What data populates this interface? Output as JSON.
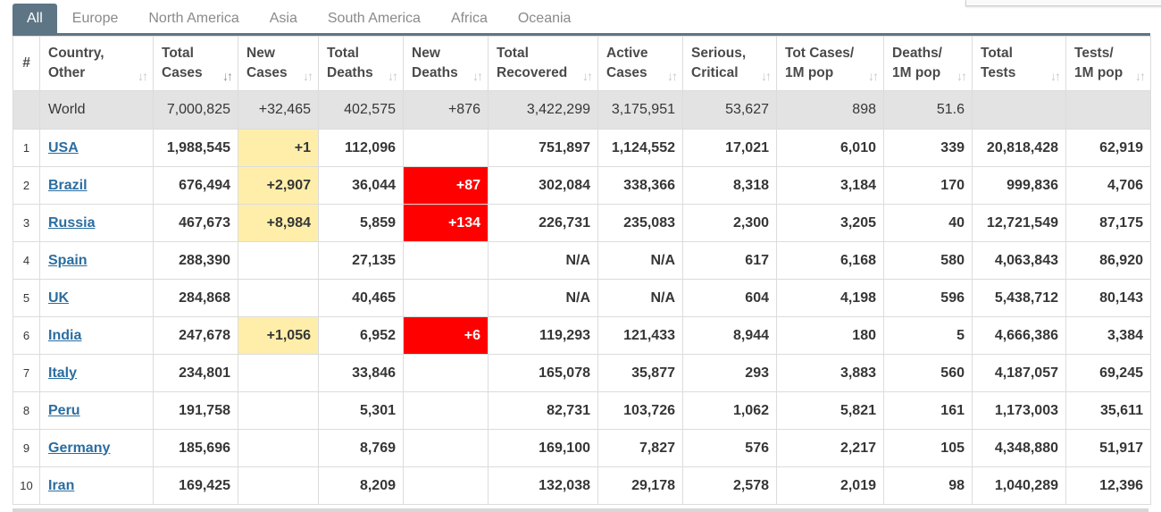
{
  "tabs": [
    "All",
    "Europe",
    "North America",
    "Asia",
    "South America",
    "Africa",
    "Oceania"
  ],
  "active_tab": "All",
  "colors": {
    "accent": "#5e7585",
    "new_cases_bg": "#ffeeaa",
    "new_deaths_bg": "#ff0000",
    "link": "#2b6da0",
    "world_row_bg": "#e3e3e3"
  },
  "columns": [
    {
      "key": "rank",
      "l1": "#",
      "l2": ""
    },
    {
      "key": "country",
      "l1": "Country,",
      "l2": "Other"
    },
    {
      "key": "total_cases",
      "l1": "Total",
      "l2": "Cases"
    },
    {
      "key": "new_cases",
      "l1": "New",
      "l2": "Cases"
    },
    {
      "key": "total_deaths",
      "l1": "Total",
      "l2": "Deaths"
    },
    {
      "key": "new_deaths",
      "l1": "New",
      "l2": "Deaths"
    },
    {
      "key": "total_recovered",
      "l1": "Total",
      "l2": "Recovered"
    },
    {
      "key": "active_cases",
      "l1": "Active",
      "l2": "Cases"
    },
    {
      "key": "serious_critical",
      "l1": "Serious,",
      "l2": "Critical"
    },
    {
      "key": "tot_cases_1m",
      "l1": "Tot Cases/",
      "l2": "1M pop"
    },
    {
      "key": "deaths_1m",
      "l1": "Deaths/",
      "l2": "1M pop"
    },
    {
      "key": "total_tests",
      "l1": "Total",
      "l2": "Tests"
    },
    {
      "key": "tests_1m",
      "l1": "Tests/",
      "l2": "1M pop"
    }
  ],
  "sort_column": "total_cases",
  "world": [
    "",
    "World",
    "7,000,825",
    "+32,465",
    "402,575",
    "+876",
    "3,422,299",
    "3,175,951",
    "53,627",
    "898",
    "51.6",
    "",
    ""
  ],
  "rows": [
    [
      "1",
      "USA",
      "1,988,545",
      "+1",
      "112,096",
      "",
      "751,897",
      "1,124,552",
      "17,021",
      "6,010",
      "339",
      "20,818,428",
      "62,919"
    ],
    [
      "2",
      "Brazil",
      "676,494",
      "+2,907",
      "36,044",
      "+87",
      "302,084",
      "338,366",
      "8,318",
      "3,184",
      "170",
      "999,836",
      "4,706"
    ],
    [
      "3",
      "Russia",
      "467,673",
      "+8,984",
      "5,859",
      "+134",
      "226,731",
      "235,083",
      "2,300",
      "3,205",
      "40",
      "12,721,549",
      "87,175"
    ],
    [
      "4",
      "Spain",
      "288,390",
      "",
      "27,135",
      "",
      "N/A",
      "N/A",
      "617",
      "6,168",
      "580",
      "4,063,843",
      "86,920"
    ],
    [
      "5",
      "UK",
      "284,868",
      "",
      "40,465",
      "",
      "N/A",
      "N/A",
      "604",
      "4,198",
      "596",
      "5,438,712",
      "80,143"
    ],
    [
      "6",
      "India",
      "247,678",
      "+1,056",
      "6,952",
      "+6",
      "119,293",
      "121,433",
      "8,944",
      "180",
      "5",
      "4,666,386",
      "3,384"
    ],
    [
      "7",
      "Italy",
      "234,801",
      "",
      "33,846",
      "",
      "165,078",
      "35,877",
      "293",
      "3,883",
      "560",
      "4,187,057",
      "69,245"
    ],
    [
      "8",
      "Peru",
      "191,758",
      "",
      "5,301",
      "",
      "82,731",
      "103,726",
      "1,062",
      "5,821",
      "161",
      "1,173,003",
      "35,611"
    ],
    [
      "9",
      "Germany",
      "185,696",
      "",
      "8,769",
      "",
      "169,100",
      "7,827",
      "576",
      "2,217",
      "105",
      "4,348,880",
      "51,917"
    ],
    [
      "10",
      "Iran",
      "169,425",
      "",
      "8,209",
      "",
      "132,038",
      "29,178",
      "2,578",
      "2,019",
      "98",
      "1,040,289",
      "12,396"
    ]
  ]
}
